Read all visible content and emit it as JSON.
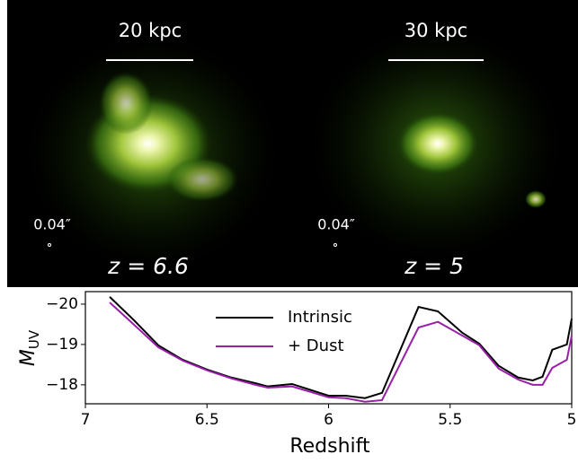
{
  "panels": [
    {
      "scale_label": "20 kpc",
      "psf_label": "0.04″",
      "redshift_label": "z = 6.6"
    },
    {
      "scale_label": "30 kpc",
      "psf_label": "0.04″",
      "redshift_label": "z = 5"
    }
  ],
  "chart_data": {
    "type": "line",
    "xlabel": "Redshift",
    "ylabel": "M",
    "ylabel_sub": "UV",
    "x": [
      6.9,
      6.8,
      6.7,
      6.6,
      6.5,
      6.4,
      6.3,
      6.25,
      6.15,
      6.0,
      5.93,
      5.85,
      5.78,
      5.63,
      5.55,
      5.45,
      5.38,
      5.3,
      5.22,
      5.16,
      5.12,
      5.08,
      5.02,
      5.0
    ],
    "series": [
      {
        "name": "Intrinsic",
        "color": "#000000",
        "values": [
          -20.18,
          -19.6,
          -18.98,
          -18.62,
          -18.38,
          -18.18,
          -18.04,
          -17.96,
          -18.02,
          -17.73,
          -17.73,
          -17.67,
          -17.8,
          -19.93,
          -19.82,
          -19.29,
          -19.02,
          -18.47,
          -18.18,
          -18.11,
          -18.2,
          -18.87,
          -19.0,
          -19.64
        ]
      },
      {
        "name": "+ Dust",
        "color": "#9a1fa8",
        "values": [
          -20.04,
          -19.49,
          -18.93,
          -18.6,
          -18.36,
          -18.16,
          -18.0,
          -17.93,
          -17.96,
          -17.69,
          -17.67,
          -17.58,
          -17.62,
          -19.42,
          -19.56,
          -19.22,
          -18.98,
          -18.4,
          -18.13,
          -18.0,
          -18.0,
          -18.42,
          -18.62,
          -19.22
        ]
      }
    ],
    "xlim": [
      7,
      5
    ],
    "xticks": [
      7,
      6.5,
      6,
      5.5,
      5
    ],
    "ylim": [
      -17.53,
      -20.31
    ],
    "yticks": [
      {
        "value": -20,
        "label": "−20"
      },
      {
        "value": -19,
        "label": "−19"
      },
      {
        "value": -18,
        "label": "−18"
      }
    ],
    "legend": "upper center"
  }
}
